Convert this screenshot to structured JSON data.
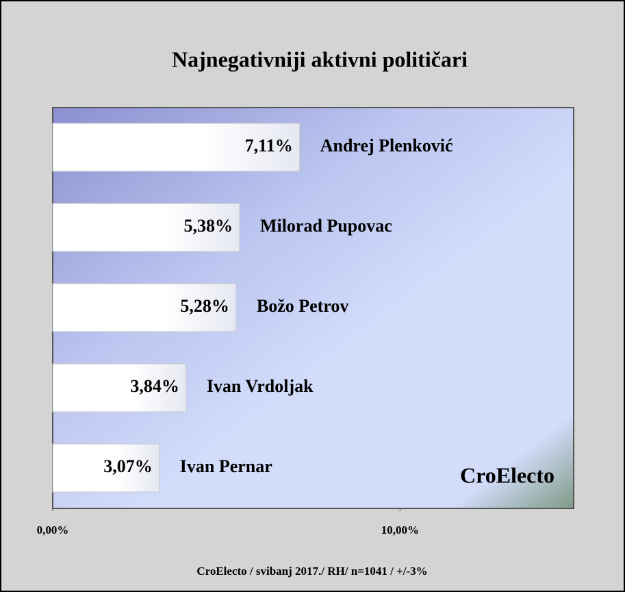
{
  "chart_data": {
    "type": "bar",
    "orientation": "horizontal",
    "title": "Najnegativniji aktivni političari",
    "categories": [
      "Andrej Plenković",
      "Milorad Pupovac",
      "Božo Petrov",
      "Ivan Vrdoljak",
      "Ivan Pernar"
    ],
    "values": [
      7.11,
      5.38,
      5.28,
      3.84,
      3.07
    ],
    "value_labels": [
      "7,11%",
      "5,38%",
      "5,28%",
      "3,84%",
      "3,07%"
    ],
    "color": "#ffffff",
    "xlim": [
      0,
      15
    ],
    "xticks": [
      {
        "value": 0,
        "label": "0,00%"
      },
      {
        "value": 10,
        "label": "10,00%"
      }
    ],
    "watermark": "CroElecto",
    "source": "CroElecto / svibanj 2017./ RH/ n=1041 / +/-3%"
  }
}
